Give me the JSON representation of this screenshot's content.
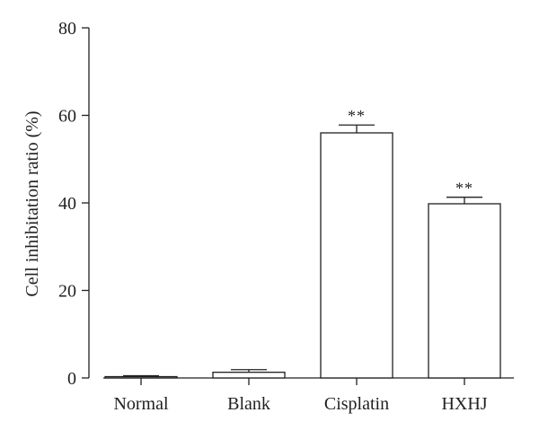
{
  "chart_data": {
    "type": "bar",
    "title": "",
    "xlabel": "",
    "ylabel": "Cell inhibitation ratio (%)",
    "ylim": [
      0,
      80
    ],
    "yticks": [
      0,
      20,
      40,
      60,
      80
    ],
    "categories": [
      "Normal",
      "Blank",
      "Cisplatin",
      "HXHJ"
    ],
    "values": [
      0.3,
      1.3,
      56.0,
      39.8
    ],
    "errors": [
      0.2,
      0.6,
      1.8,
      1.5
    ],
    "annotations": [
      "",
      "",
      "**",
      "**"
    ],
    "colors": {
      "bar_fill": "#ffffff",
      "stroke": "#231f20"
    }
  }
}
